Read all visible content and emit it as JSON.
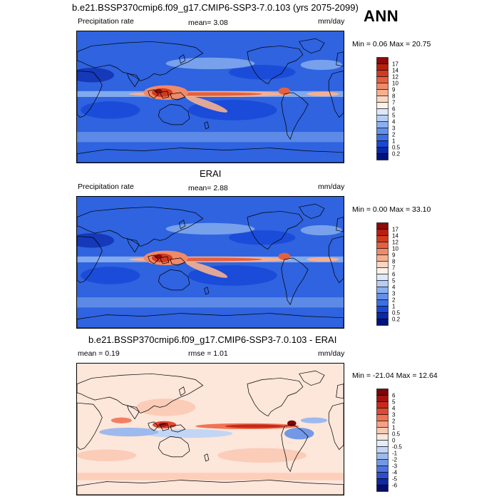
{
  "season": "ANN",
  "panels": [
    {
      "title": "b.e21.BSSP370cmip6.f09_g17.CMIP6-SSP3-7.0.103 (yrs 2075-2099)",
      "left_label": "Precipitation rate",
      "center_label": "mean=  3.08",
      "right_label": "mm/day",
      "minmax": "Min =   0.06 Max =  20.75",
      "colorbar_labels": [
        "17",
        "14",
        "12",
        "10",
        "9",
        "8",
        "7",
        "6",
        "5",
        "4",
        "3",
        "2",
        "1",
        "0.5",
        "0.2"
      ],
      "colorbar_colors": [
        "#8c0a0a",
        "#b8200d",
        "#d43a1f",
        "#e5603e",
        "#f08a68",
        "#f6b090",
        "#fbd5c0",
        "#fdf0e6",
        "#dce8fb",
        "#b6cdf5",
        "#8bb0ef",
        "#6490e8",
        "#3b6fe3",
        "#1848d8",
        "#0a28a8",
        "#001478"
      ],
      "map_style": "precip"
    },
    {
      "title": "ERAI",
      "left_label": "Precipitation rate",
      "center_label": "mean=  2.88",
      "right_label": "mm/day",
      "minmax": "Min =   0.00 Max =  33.10",
      "colorbar_labels": [
        "17",
        "14",
        "12",
        "10",
        "9",
        "8",
        "7",
        "6",
        "5",
        "4",
        "3",
        "2",
        "1",
        "0.5",
        "0.2"
      ],
      "colorbar_colors": [
        "#8c0a0a",
        "#b8200d",
        "#d43a1f",
        "#e5603e",
        "#f08a68",
        "#f6b090",
        "#fbd5c0",
        "#fdf0e6",
        "#dce8fb",
        "#b6cdf5",
        "#8bb0ef",
        "#6490e8",
        "#3b6fe3",
        "#1848d8",
        "#0a28a8",
        "#001478"
      ],
      "map_style": "precip"
    },
    {
      "title": "b.e21.BSSP370cmip6.f09_g17.CMIP6-SSP3-7.0.103 - ERAI",
      "left_label": "mean =   0.19",
      "center_label": "rmse =   1.01",
      "right_label": "mm/day",
      "minmax": "Min = -21.04 Max =  12.64",
      "colorbar_labels": [
        "6",
        "5",
        "4",
        "3",
        "2",
        "1",
        "0.5",
        "0",
        "-0.5",
        "-1",
        "-2",
        "-3",
        "-4",
        "-5",
        "-6"
      ],
      "colorbar_colors": [
        "#7a0608",
        "#a3130f",
        "#c62a1c",
        "#e04a32",
        "#ef7455",
        "#f7a083",
        "#fbc9b2",
        "#fde6da",
        "#e3ecfb",
        "#c3d5f4",
        "#9dbaee",
        "#7398e6",
        "#4d74de",
        "#2b4fcf",
        "#12289e",
        "#050e6a"
      ],
      "map_style": "diff"
    }
  ]
}
